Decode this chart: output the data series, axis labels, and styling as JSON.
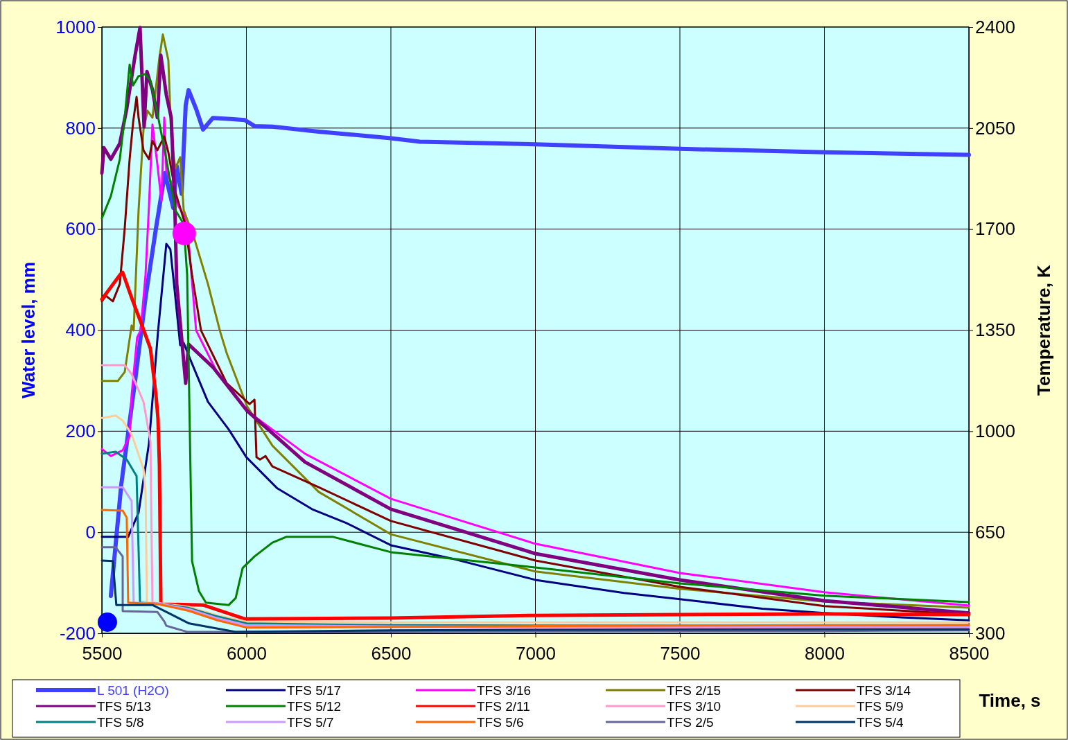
{
  "chart_data": {
    "type": "line",
    "xlabel": "Time, s",
    "ylabel": "Water level, mm",
    "y2label": "Temperature, K",
    "xlim": [
      5500,
      8500
    ],
    "xticks": [
      5500,
      6000,
      6500,
      7000,
      7500,
      8000,
      8500
    ],
    "ylim": [
      -200,
      1000
    ],
    "yticks": [
      -200,
      0,
      200,
      400,
      600,
      800,
      1000
    ],
    "y2lim": [
      300,
      2400
    ],
    "y2ticks": [
      300,
      650,
      1000,
      1350,
      1700,
      2050,
      2400
    ],
    "grid": true,
    "legend": "bottom",
    "series": [
      {
        "name": "L 501 (H2O)",
        "color": "#4040ff",
        "x": [
          5531,
          5567,
          5615,
          5651,
          5687,
          5718,
          5747,
          5759,
          5776,
          5790,
          5800,
          5826,
          5850,
          5884,
          5946,
          5994,
          6028,
          6090,
          6250,
          6500,
          6600,
          7000,
          7500,
          8000,
          8500
        ],
        "values": [
          -126,
          94,
          300,
          464,
          601,
          711,
          642,
          725,
          670,
          845,
          875,
          838,
          797,
          820,
          818,
          816,
          804,
          803,
          793,
          780,
          773,
          768,
          759,
          752,
          747
        ]
      },
      {
        "name": "TFS 5/17",
        "color": "#000080",
        "axis": "y2",
        "x": [
          5500,
          5591,
          5627,
          5663,
          5694,
          5723,
          5737,
          5752,
          5771,
          5783,
          5807,
          5867,
          5939,
          6000,
          6107,
          6227,
          6346,
          6500,
          6706,
          7000,
          7306,
          7500,
          7785,
          8000,
          8265,
          8500
        ],
        "values": [
          634,
          634,
          718,
          958,
          1342,
          1649,
          1630,
          1486,
          1298,
          1306,
          1246,
          1102,
          1006,
          910,
          802,
          730,
          682,
          605,
          560,
          485,
          440,
          418,
          385,
          370,
          355,
          345
        ]
      },
      {
        "name": "TFS 3/16",
        "color": "#ff00ff",
        "axis": "y2",
        "x": [
          5500,
          5531,
          5572,
          5596,
          5603,
          5622,
          5634,
          5651,
          5663,
          5675,
          5692,
          5706,
          5716,
          5723,
          5740,
          5764,
          5788,
          5802,
          5826,
          5898,
          6003,
          6203,
          6500,
          7000,
          7500,
          8000,
          8500
        ],
        "values": [
          938,
          914,
          934,
          982,
          1126,
          1325,
          1349,
          1541,
          1781,
          2062,
          1925,
          1798,
          2086,
          1901,
          1862,
          1781,
          1742,
          1637,
          1349,
          1205,
          1070,
          922,
          766,
          610,
          509,
          442,
          396
        ]
      },
      {
        "name": "TFS 2/15",
        "color": "#808000",
        "axis": "y2",
        "x": [
          5500,
          5555,
          5579,
          5603,
          5610,
          5627,
          5644,
          5658,
          5675,
          5699,
          5711,
          5730,
          5740,
          5754,
          5771,
          5783,
          5819,
          5867,
          5908,
          5932,
          6003,
          6090,
          6250,
          6500,
          7000,
          7500,
          8000,
          8500
        ],
        "values": [
          1174,
          1174,
          1205,
          1366,
          1349,
          1766,
          2045,
          2110,
          2086,
          2294,
          2374,
          2285,
          2021,
          1910,
          1949,
          1766,
          1670,
          1510,
          1349,
          1270,
          1085,
          950,
          790,
          643,
          514,
          454,
          410,
          389
        ]
      },
      {
        "name": "TFS 3/14",
        "color": "#800000",
        "axis": "y2",
        "x": [
          5500,
          5514,
          5538,
          5562,
          5579,
          5596,
          5608,
          5620,
          5627,
          5644,
          5663,
          5675,
          5692,
          5716,
          5730,
          5754,
          5788,
          5812,
          5843,
          5932,
          6011,
          6028,
          6035,
          6047,
          6066,
          6090,
          6250,
          6500,
          7000,
          7500,
          8000,
          8500
        ],
        "values": [
          1450,
          1469,
          1450,
          1510,
          1702,
          1942,
          2069,
          2158,
          2086,
          1973,
          1942,
          2006,
          1973,
          2021,
          1966,
          1829,
          1718,
          1541,
          1349,
          1166,
          1094,
          1109,
          910,
          902,
          914,
          878,
          806,
          689,
          552,
          461,
          394,
          365
        ]
      },
      {
        "name": "TFS 5/13",
        "color": "#800080",
        "axis": "y2",
        "x": [
          5500,
          5507,
          5531,
          5562,
          5586,
          5615,
          5632,
          5646,
          5656,
          5675,
          5692,
          5704,
          5723,
          5740,
          5752,
          5759,
          5790,
          5800,
          5884,
          6003,
          6203,
          6500,
          7000,
          7500,
          8000,
          8500
        ],
        "values": [
          1894,
          1982,
          1942,
          1997,
          2117,
          2302,
          2398,
          2054,
          2246,
          2182,
          2086,
          2302,
          2165,
          2086,
          1798,
          1510,
          1166,
          1301,
          1222,
          1070,
          893,
          730,
          576,
          485,
          413,
          370
        ]
      },
      {
        "name": "TFS 5/12",
        "color": "#008000",
        "axis": "y2",
        "x": [
          5500,
          5531,
          5562,
          5579,
          5596,
          5608,
          5627,
          5651,
          5668,
          5692,
          5723,
          5754,
          5783,
          5795,
          5812,
          5836,
          5860,
          5939,
          5963,
          5987,
          6028,
          6090,
          6138,
          6300,
          6500,
          7000,
          7500,
          8000,
          8500
        ],
        "values": [
          1738,
          1814,
          1942,
          2086,
          2270,
          2198,
          2230,
          2237,
          2213,
          2102,
          1942,
          1766,
          1718,
          1541,
          550,
          446,
          406,
          398,
          422,
          526,
          566,
          614,
          634,
          634,
          581,
          528,
          473,
          430,
          408
        ]
      },
      {
        "name": "TFS 2/11",
        "color": "#ff0000",
        "axis": "y2",
        "x": [
          5500,
          5562,
          5572,
          5603,
          5639,
          5668,
          5687,
          5694,
          5699,
          5704,
          5706,
          5850,
          5994,
          6500,
          7000,
          7500,
          8000,
          8500
        ],
        "values": [
          1457,
          1541,
          1550,
          1462,
          1366,
          1286,
          1126,
          1046,
          886,
          406,
          401,
          398,
          350,
          353,
          362,
          365,
          367,
          365
        ]
      },
      {
        "name": "TFS 3/10",
        "color": "#ff99cc",
        "axis": "y2",
        "x": [
          5500,
          5579,
          5603,
          5644,
          5668,
          5675,
          5700,
          5800,
          5900,
          6000,
          6500,
          7000,
          8000,
          8500
        ],
        "values": [
          1229,
          1229,
          1198,
          1102,
          965,
          406,
          404,
          385,
          350,
          325,
          322,
          320,
          319,
          319
        ]
      },
      {
        "name": "TFS 5/9",
        "color": "#ffcc99",
        "axis": "y2",
        "x": [
          5500,
          5548,
          5572,
          5603,
          5644,
          5651,
          5656,
          5700,
          5800,
          5900,
          6000,
          6500,
          7000,
          8000,
          8500
        ],
        "values": [
          1046,
          1054,
          1037,
          989,
          869,
          790,
          406,
          404,
          392,
          362,
          340,
          338,
          338,
          338,
          338
        ]
      },
      {
        "name": "TFS 5/8",
        "color": "#008080",
        "axis": "y2",
        "x": [
          5500,
          5548,
          5586,
          5620,
          5632,
          5700,
          5800,
          5900,
          6000,
          6500,
          7000,
          8000,
          8500
        ],
        "values": [
          922,
          929,
          902,
          845,
          406,
          402,
          388,
          358,
          334,
          328,
          327,
          326,
          326
        ]
      },
      {
        "name": "TFS 5/7",
        "color": "#cc99ff",
        "axis": "y2",
        "x": [
          5500,
          5572,
          5603,
          5610,
          5700,
          5800,
          5900,
          6000,
          6500,
          7000,
          8000,
          8500
        ],
        "values": [
          806,
          806,
          758,
          406,
          402,
          384,
          352,
          328,
          324,
          323,
          322,
          322
        ]
      },
      {
        "name": "TFS 5/6",
        "color": "#ff6600",
        "axis": "y2",
        "x": [
          5500,
          5572,
          5586,
          5591,
          5700,
          5800,
          5900,
          6000,
          6500,
          7000,
          8000,
          8500
        ],
        "values": [
          727,
          725,
          701,
          406,
          400,
          378,
          345,
          320,
          322,
          325,
          328,
          329
        ]
      },
      {
        "name": "TFS 2/5",
        "color": "#666699",
        "axis": "y2",
        "x": [
          5500,
          5548,
          5572,
          5572,
          5692,
          5716,
          5723,
          5795,
          6000,
          7000,
          8000,
          8500
        ],
        "values": [
          598,
          598,
          566,
          377,
          374,
          341,
          326,
          305,
          305,
          307,
          308,
          310
        ]
      },
      {
        "name": "TFS 5/4",
        "color": "#003366",
        "axis": "y2",
        "x": [
          5500,
          5538,
          5550,
          5675,
          5723,
          5802,
          5963,
          6500,
          7000,
          8000,
          8500
        ],
        "values": [
          552,
          550,
          398,
          398,
          374,
          334,
          305,
          310,
          312,
          314,
          314
        ]
      },
      {
        "type": "scatter",
        "color": "#0000ff",
        "x": [
          5519
        ],
        "values": [
          -178
        ]
      },
      {
        "type": "scatter",
        "color": "#ff00ff",
        "axis": "y2",
        "x": [
          5785
        ],
        "values": [
          1685
        ]
      }
    ]
  }
}
